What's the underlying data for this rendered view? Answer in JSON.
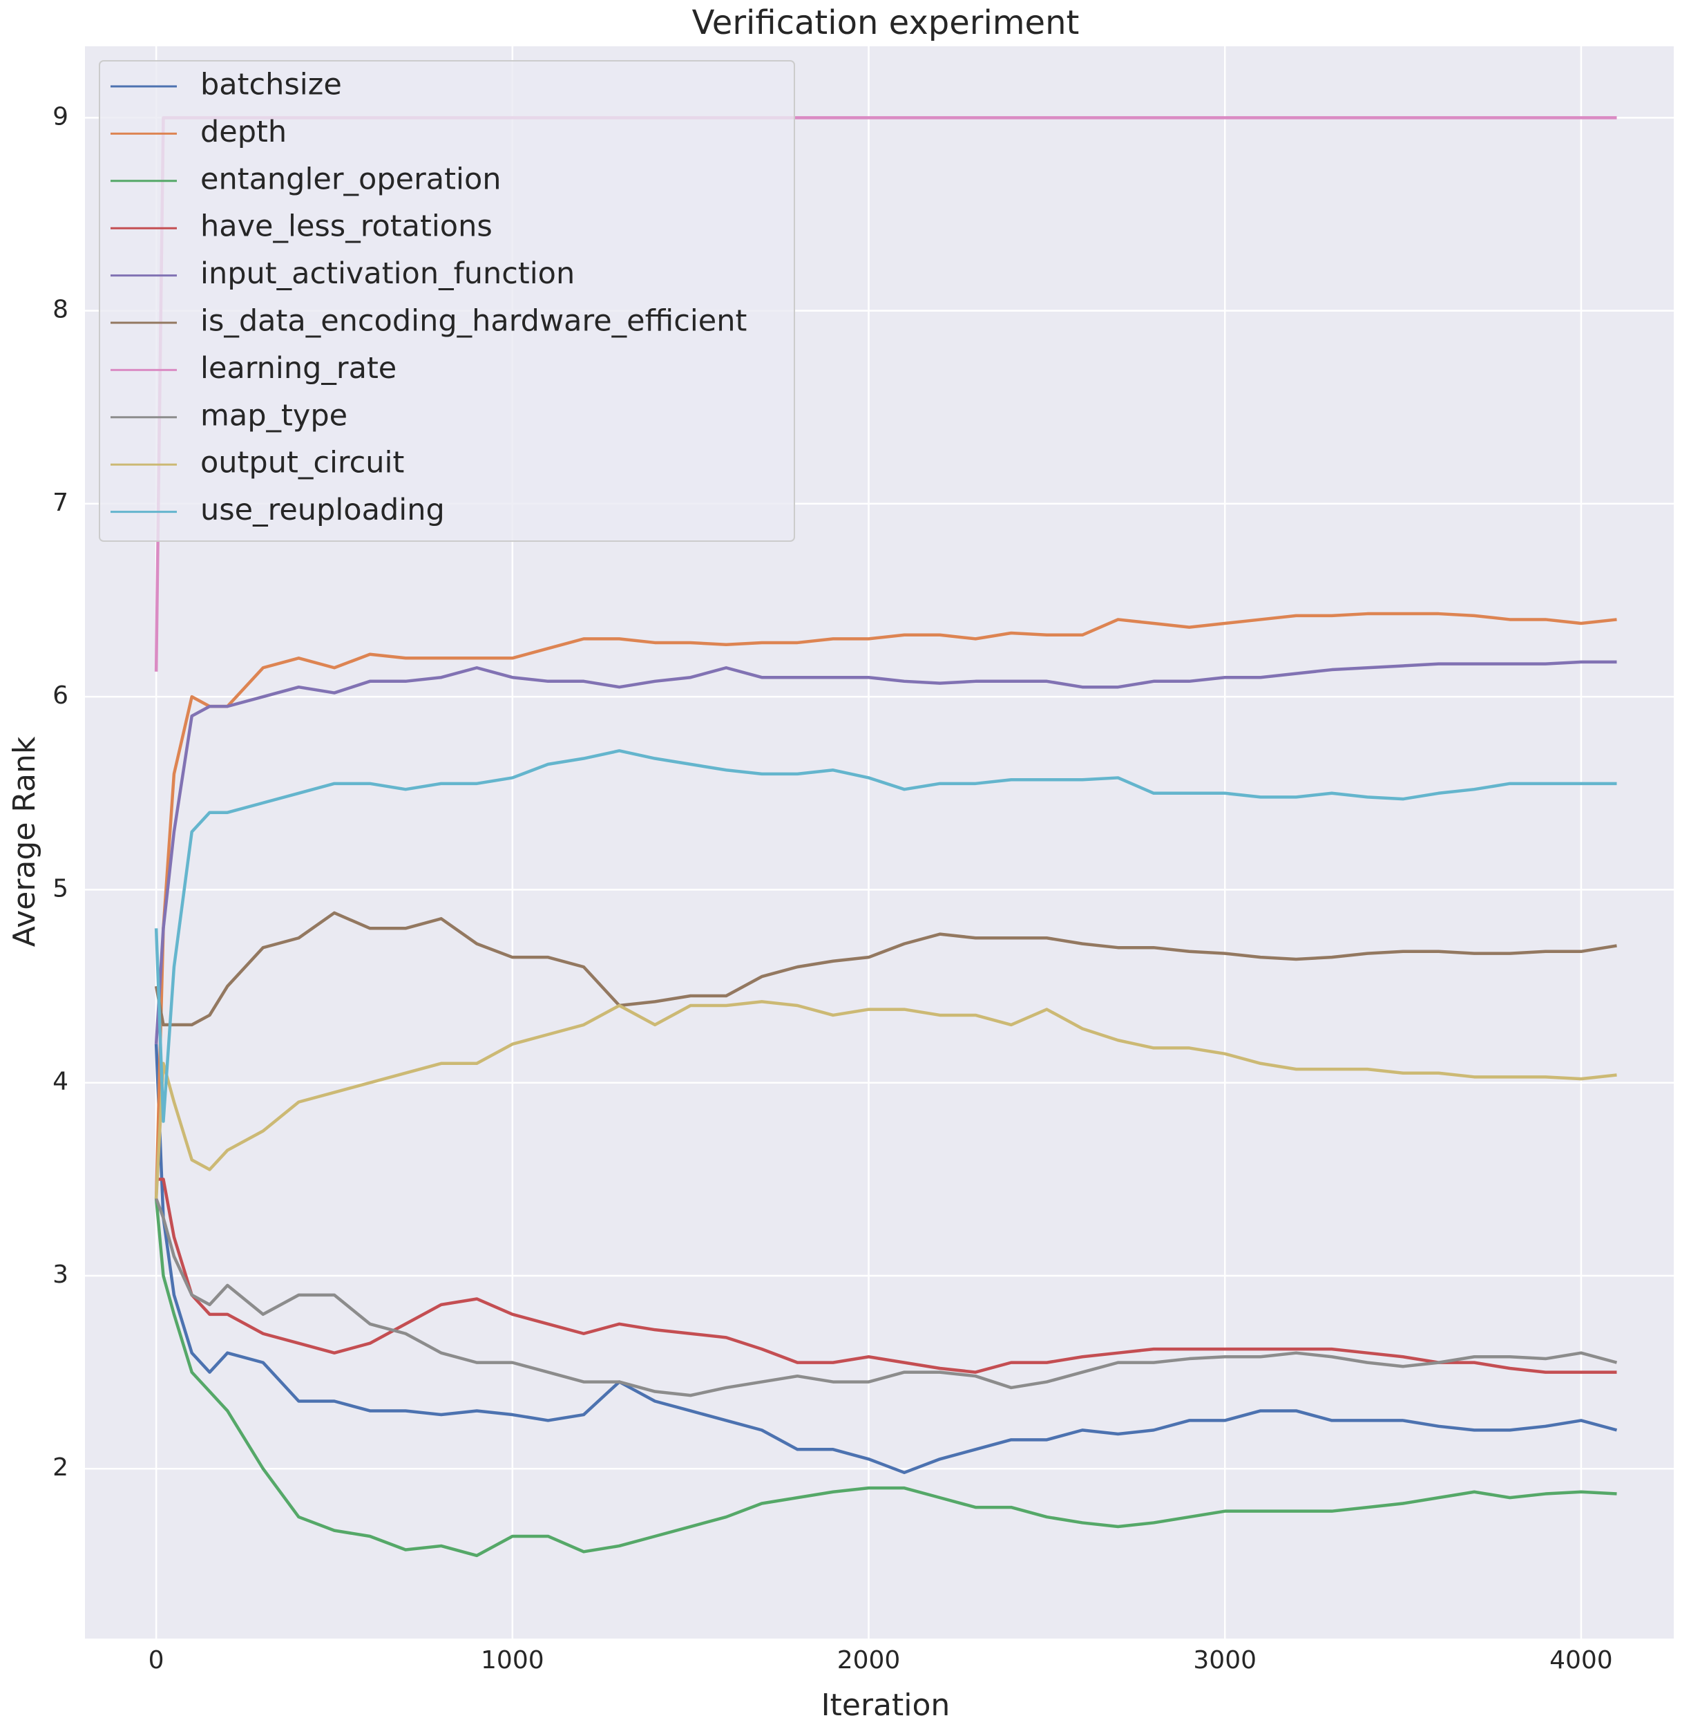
{
  "chart_data": {
    "type": "line",
    "title": "Verification experiment",
    "x_label": "Iteration",
    "y_label": "Average Rank",
    "x": [
      0,
      20,
      50,
      100,
      150,
      200,
      300,
      400,
      500,
      600,
      700,
      800,
      900,
      1000,
      1100,
      1200,
      1300,
      1400,
      1500,
      1600,
      1700,
      1800,
      1900,
      2000,
      2100,
      2200,
      2300,
      2400,
      2500,
      2600,
      2700,
      2800,
      2900,
      3000,
      3100,
      3200,
      3300,
      3400,
      3500,
      3600,
      3700,
      3800,
      3900,
      4000,
      4100
    ],
    "series": [
      {
        "name": "batchsize",
        "color": "#4c72b0",
        "values": [
          4.2,
          3.3,
          2.9,
          2.6,
          2.5,
          2.6,
          2.55,
          2.35,
          2.35,
          2.3,
          2.3,
          2.28,
          2.3,
          2.28,
          2.25,
          2.28,
          2.45,
          2.35,
          2.3,
          2.25,
          2.2,
          2.1,
          2.1,
          2.05,
          1.98,
          2.05,
          2.1,
          2.15,
          2.15,
          2.2,
          2.18,
          2.2,
          2.25,
          2.25,
          2.3,
          2.3,
          2.25,
          2.25,
          2.25,
          2.22,
          2.2,
          2.2,
          2.22,
          2.25,
          2.2
        ]
      },
      {
        "name": "depth",
        "color": "#dd8452",
        "values": [
          3.4,
          4.8,
          5.6,
          6.0,
          5.95,
          5.95,
          6.15,
          6.2,
          6.15,
          6.22,
          6.2,
          6.2,
          6.2,
          6.2,
          6.25,
          6.3,
          6.3,
          6.28,
          6.28,
          6.27,
          6.28,
          6.28,
          6.3,
          6.3,
          6.32,
          6.32,
          6.3,
          6.33,
          6.32,
          6.32,
          6.4,
          6.38,
          6.36,
          6.38,
          6.4,
          6.42,
          6.42,
          6.43,
          6.43,
          6.43,
          6.42,
          6.4,
          6.4,
          6.38,
          6.4
        ]
      },
      {
        "name": "entangler_operation",
        "color": "#55a868",
        "values": [
          3.4,
          3.0,
          2.8,
          2.5,
          2.4,
          2.3,
          2.0,
          1.75,
          1.68,
          1.65,
          1.58,
          1.6,
          1.55,
          1.65,
          1.65,
          1.57,
          1.6,
          1.65,
          1.7,
          1.75,
          1.82,
          1.85,
          1.88,
          1.9,
          1.9,
          1.85,
          1.8,
          1.8,
          1.75,
          1.72,
          1.7,
          1.72,
          1.75,
          1.78,
          1.78,
          1.78,
          1.78,
          1.8,
          1.82,
          1.85,
          1.88,
          1.85,
          1.87,
          1.88,
          1.87
        ]
      },
      {
        "name": "have_less_rotations",
        "color": "#c44e52",
        "values": [
          3.5,
          3.5,
          3.2,
          2.9,
          2.8,
          2.8,
          2.7,
          2.65,
          2.6,
          2.65,
          2.75,
          2.85,
          2.88,
          2.8,
          2.75,
          2.7,
          2.75,
          2.72,
          2.7,
          2.68,
          2.62,
          2.55,
          2.55,
          2.58,
          2.55,
          2.52,
          2.5,
          2.55,
          2.55,
          2.58,
          2.6,
          2.62,
          2.62,
          2.62,
          2.62,
          2.62,
          2.62,
          2.6,
          2.58,
          2.55,
          2.55,
          2.52,
          2.5,
          2.5,
          2.5
        ]
      },
      {
        "name": "input_activation_function",
        "color": "#8172b3",
        "values": [
          4.2,
          4.8,
          5.3,
          5.9,
          5.95,
          5.95,
          6.0,
          6.05,
          6.02,
          6.08,
          6.08,
          6.1,
          6.15,
          6.1,
          6.08,
          6.08,
          6.05,
          6.08,
          6.1,
          6.15,
          6.1,
          6.1,
          6.1,
          6.1,
          6.08,
          6.07,
          6.08,
          6.08,
          6.08,
          6.05,
          6.05,
          6.08,
          6.08,
          6.1,
          6.1,
          6.12,
          6.14,
          6.15,
          6.16,
          6.17,
          6.17,
          6.17,
          6.17,
          6.18,
          6.18
        ]
      },
      {
        "name": "is_data_encoding_hardware_efficient",
        "color": "#937860",
        "values": [
          4.5,
          4.3,
          4.3,
          4.3,
          4.35,
          4.5,
          4.7,
          4.75,
          4.88,
          4.8,
          4.8,
          4.85,
          4.72,
          4.65,
          4.65,
          4.6,
          4.4,
          4.42,
          4.45,
          4.45,
          4.55,
          4.6,
          4.63,
          4.65,
          4.72,
          4.77,
          4.75,
          4.75,
          4.75,
          4.72,
          4.7,
          4.7,
          4.68,
          4.67,
          4.65,
          4.64,
          4.65,
          4.67,
          4.68,
          4.68,
          4.67,
          4.67,
          4.68,
          4.68,
          4.71
        ]
      },
      {
        "name": "learning_rate",
        "color": "#da8bc3",
        "values": [
          6.13,
          9.0,
          9.0,
          9.0,
          9.0,
          9.0,
          9.0,
          9.0,
          9.0,
          9.0,
          9.0,
          9.0,
          9.0,
          9.0,
          9.0,
          9.0,
          9.0,
          9.0,
          9.0,
          9.0,
          9.0,
          9.0,
          9.0,
          9.0,
          9.0,
          9.0,
          9.0,
          9.0,
          9.0,
          9.0,
          9.0,
          9.0,
          9.0,
          9.0,
          9.0,
          9.0,
          9.0,
          9.0,
          9.0,
          9.0,
          9.0,
          9.0,
          9.0,
          9.0,
          9.0
        ]
      },
      {
        "name": "map_type",
        "color": "#8c8c8c",
        "values": [
          3.4,
          3.3,
          3.1,
          2.9,
          2.85,
          2.95,
          2.8,
          2.9,
          2.9,
          2.75,
          2.7,
          2.6,
          2.55,
          2.55,
          2.5,
          2.45,
          2.45,
          2.4,
          2.38,
          2.42,
          2.45,
          2.48,
          2.45,
          2.45,
          2.5,
          2.5,
          2.48,
          2.42,
          2.45,
          2.5,
          2.55,
          2.55,
          2.57,
          2.58,
          2.58,
          2.6,
          2.58,
          2.55,
          2.53,
          2.55,
          2.58,
          2.58,
          2.57,
          2.6,
          2.55
        ]
      },
      {
        "name": "output_circuit",
        "color": "#ccb974",
        "values": [
          3.4,
          4.1,
          3.9,
          3.6,
          3.55,
          3.65,
          3.75,
          3.9,
          3.95,
          4.0,
          4.05,
          4.1,
          4.1,
          4.2,
          4.25,
          4.3,
          4.4,
          4.3,
          4.4,
          4.4,
          4.42,
          4.4,
          4.35,
          4.38,
          4.38,
          4.35,
          4.35,
          4.3,
          4.38,
          4.28,
          4.22,
          4.18,
          4.18,
          4.15,
          4.1,
          4.07,
          4.07,
          4.07,
          4.05,
          4.05,
          4.03,
          4.03,
          4.03,
          4.02,
          4.04
        ]
      },
      {
        "name": "use_reuploading",
        "color": "#64b5cd",
        "values": [
          4.8,
          3.8,
          4.6,
          5.3,
          5.4,
          5.4,
          5.45,
          5.5,
          5.55,
          5.55,
          5.52,
          5.55,
          5.55,
          5.58,
          5.65,
          5.68,
          5.72,
          5.68,
          5.65,
          5.62,
          5.6,
          5.6,
          5.62,
          5.58,
          5.52,
          5.55,
          5.55,
          5.57,
          5.57,
          5.57,
          5.58,
          5.5,
          5.5,
          5.5,
          5.48,
          5.48,
          5.5,
          5.48,
          5.47,
          5.5,
          5.52,
          5.55,
          5.55,
          5.55,
          5.55
        ]
      }
    ],
    "xlim": [
      -200,
      4260
    ],
    "ylim": [
      1.12,
      9.37
    ],
    "xticks": [
      0,
      1000,
      2000,
      3000,
      4000
    ],
    "yticks": [
      2,
      3,
      4,
      5,
      6,
      7,
      8,
      9
    ],
    "grid": true,
    "legend": "upper left"
  }
}
